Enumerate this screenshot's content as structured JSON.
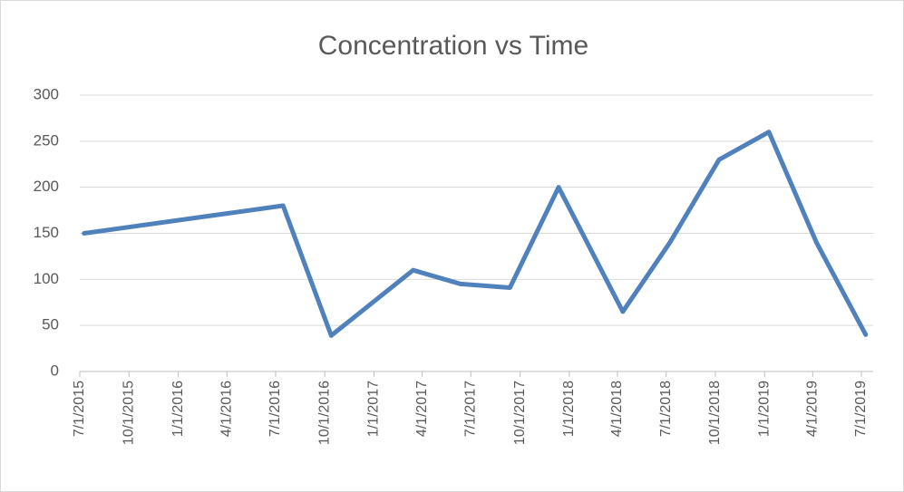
{
  "chart_data": {
    "type": "line",
    "title": "Concentration vs Time",
    "x": [
      "7/9/2015",
      "7/15/2016",
      "10/13/2016",
      "3/15/2017",
      "6/12/2017",
      "9/12/2017",
      "12/12/2017",
      "4/11/2018",
      "7/8/2018",
      "10/8/2018",
      "1/9/2019",
      "4/8/2019",
      "7/9/2019"
    ],
    "series": [
      {
        "name": "Concentration",
        "color": "#4f81bd",
        "values": [
          150,
          180,
          39,
          110,
          95,
          91,
          200,
          65,
          140,
          230,
          260,
          140,
          40
        ]
      }
    ],
    "xlim": [
      "7/1/2015",
      "7/23/2019"
    ],
    "xticks": [
      "7/1/2015",
      "10/1/2015",
      "1/1/2016",
      "4/1/2016",
      "7/1/2016",
      "10/1/2016",
      "1/1/2017",
      "4/1/2017",
      "7/1/2017",
      "10/1/2017",
      "1/1/2018",
      "4/1/2018",
      "7/1/2018",
      "10/1/2018",
      "1/1/2019",
      "4/1/2019",
      "7/1/2019"
    ],
    "ylim": [
      0,
      300
    ],
    "yticks": [
      0,
      50,
      100,
      150,
      200,
      250,
      300
    ],
    "grid": true
  }
}
